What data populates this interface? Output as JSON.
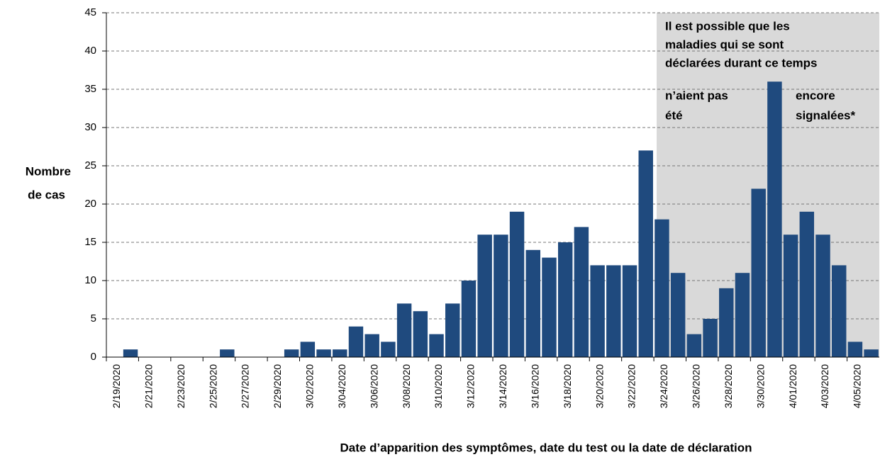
{
  "chart_data": {
    "type": "bar",
    "y_label": [
      "Nombre",
      "de cas"
    ],
    "x_label": "Date d’apparition des symptômes, date du test ou la date de déclaration",
    "annotation": [
      "Il est possible que les",
      "maladies qui se sont",
      "déclarées durant ce temps",
      "n’aient pas",
      "encore",
      "été",
      "signalées*"
    ],
    "categories": [
      "2/19/2020",
      null,
      "2/21/2020",
      null,
      "2/23/2020",
      null,
      "2/25/2020",
      null,
      "2/27/2020",
      null,
      "2/29/2020",
      null,
      "3/02/2020",
      null,
      "3/04/2020",
      null,
      "3/06/2020",
      null,
      "3/08/2020",
      null,
      "3/10/2020",
      null,
      "3/12/2020",
      null,
      "3/14/2020",
      null,
      "3/16/2020",
      null,
      "3/18/2020",
      null,
      "3/20/2020",
      null,
      "3/22/2020",
      null,
      "3/24/2020",
      null,
      "3/26/2020",
      null,
      "3/28/2020",
      null,
      "3/30/2020",
      null,
      "4/01/2020",
      null,
      "4/03/2020",
      null,
      "4/05/2020",
      null
    ],
    "values": [
      0,
      1,
      0,
      0,
      0,
      0,
      0,
      1,
      0,
      0,
      0,
      1,
      2,
      1,
      1,
      4,
      3,
      2,
      7,
      6,
      3,
      7,
      10,
      16,
      16,
      19,
      14,
      13,
      15,
      17,
      12,
      12,
      12,
      27,
      18,
      11,
      3,
      5,
      9,
      11,
      22,
      36,
      16,
      19,
      16,
      12,
      2,
      1
    ],
    "color": "#1f4a7e",
    "ylim": [
      0,
      45
    ],
    "yticks": [
      0,
      5,
      10,
      15,
      20,
      25,
      30,
      35,
      40,
      45
    ],
    "grid": true
  }
}
